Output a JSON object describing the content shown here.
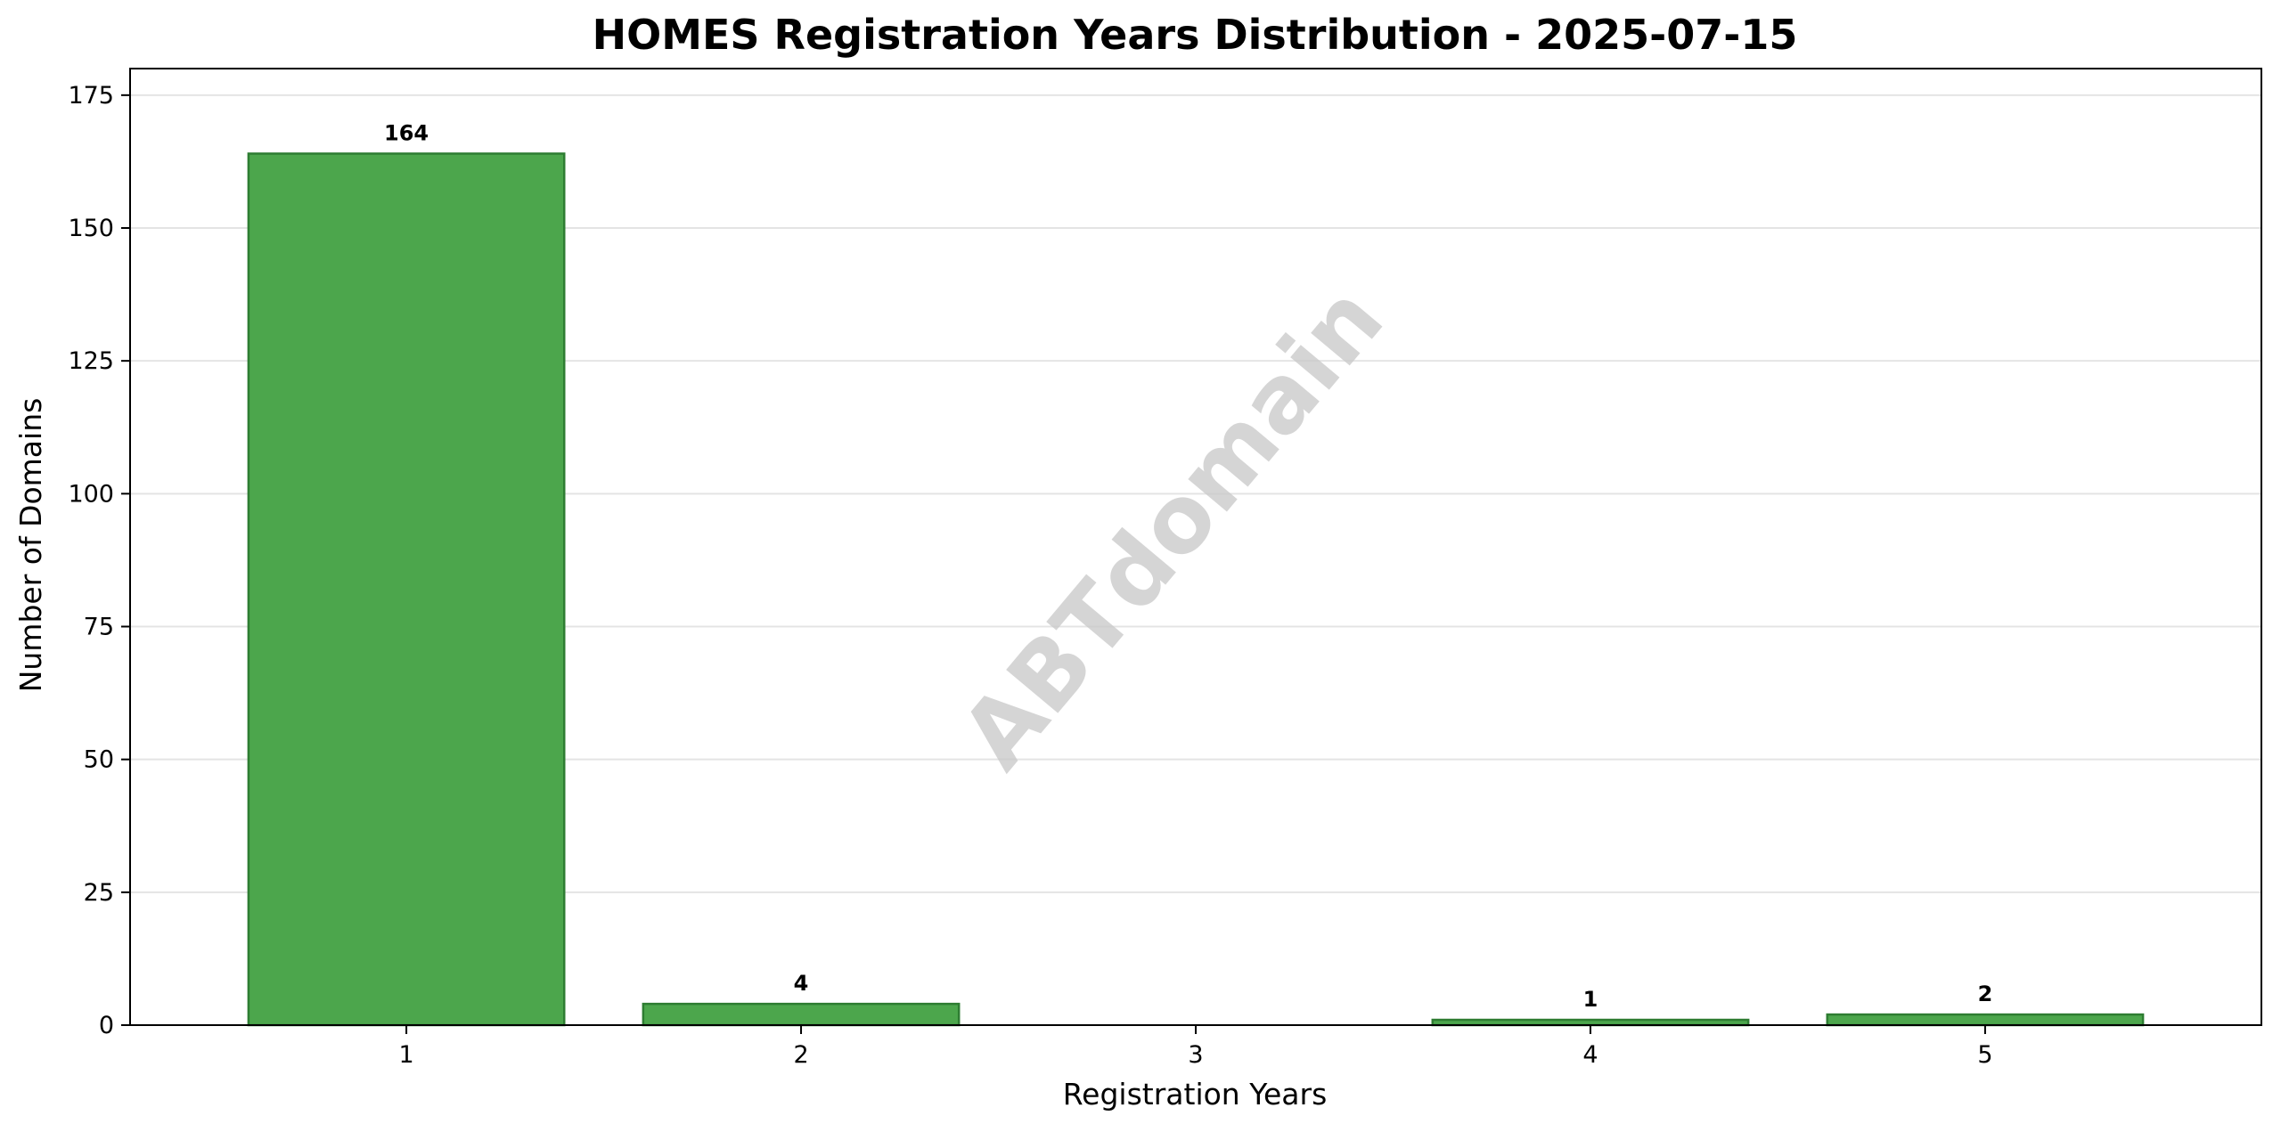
{
  "chart_data": {
    "type": "bar",
    "title": "HOMES Registration Years Distribution - 2025-07-15",
    "xlabel": "Registration Years",
    "ylabel": "Number of Domains",
    "categories": [
      "1",
      "2",
      "3",
      "4",
      "5"
    ],
    "values": [
      164,
      4,
      0,
      1,
      2
    ],
    "data_labels": [
      "164",
      "4",
      "",
      "1",
      "2"
    ],
    "ylim": [
      0,
      180
    ],
    "yticks": [
      0,
      25,
      50,
      75,
      100,
      125,
      150,
      175
    ],
    "grid": "horizontal",
    "legend": "none",
    "bar_color": "#4ca64c",
    "bar_edge_color": "#2e7d32",
    "watermark": "ABTdomain"
  }
}
